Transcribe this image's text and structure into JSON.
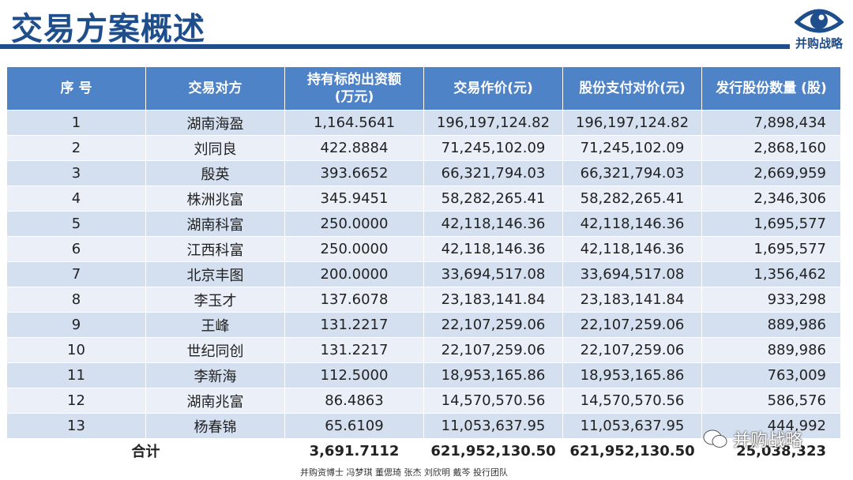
{
  "title": "交易方案概述",
  "logo_text": "并购战略",
  "table": {
    "headers": [
      "序 号",
      "交易对方",
      "持有标的出资额\n(万元)",
      "交易作价(元)",
      "股份支付对价(元)",
      "发行股份数量 (股)"
    ],
    "rows": [
      [
        "1",
        "湖南海盈",
        "1,164.5641",
        "196,197,124.82",
        "196,197,124.82",
        "7,898,434"
      ],
      [
        "2",
        "刘同良",
        "422.8884",
        "71,245,102.09",
        "71,245,102.09",
        "2,868,160"
      ],
      [
        "3",
        "殷英",
        "393.6652",
        "66,321,794.03",
        "66,321,794.03",
        "2,669,959"
      ],
      [
        "4",
        "株洲兆富",
        "345.9451",
        "58,282,265.41",
        "58,282,265.41",
        "2,346,306"
      ],
      [
        "5",
        "湖南科富",
        "250.0000",
        "42,118,146.36",
        "42,118,146.36",
        "1,695,577"
      ],
      [
        "6",
        "江西科富",
        "250.0000",
        "42,118,146.36",
        "42,118,146.36",
        "1,695,577"
      ],
      [
        "7",
        "北京丰图",
        "200.0000",
        "33,694,517.08",
        "33,694,517.08",
        "1,356,462"
      ],
      [
        "8",
        "李玉才",
        "137.6078",
        "23,183,141.84",
        "23,183,141.84",
        "933,298"
      ],
      [
        "9",
        "王峰",
        "131.2217",
        "22,107,259.06",
        "22,107,259.06",
        "889,986"
      ],
      [
        "10",
        "世纪同创",
        "131.2217",
        "22,107,259.06",
        "22,107,259.06",
        "889,986"
      ],
      [
        "11",
        "李新海",
        "112.5000",
        "18,953,165.86",
        "18,953,165.86",
        "763,009"
      ],
      [
        "12",
        "湖南兆富",
        "86.4863",
        "14,570,570.56",
        "14,570,570.56",
        "586,576"
      ],
      [
        "13",
        "杨春锦",
        "65.6109",
        "11,053,637.95",
        "11,053,637.95",
        "444,992"
      ]
    ],
    "total": [
      "合计",
      "3,691.7112",
      "621,952,130.50",
      "621,952,130.50",
      "25,038,323"
    ]
  },
  "footer": "并购资博士 冯梦琪 董偲琦 张杰 刘欣明 戴芩 投行团队",
  "watermark": "并购战略",
  "colors": {
    "header_bg": "#4f83c8",
    "row_odd": "#d4dff0",
    "row_even": "#eaeff8",
    "brand": "#1f4e8c"
  }
}
